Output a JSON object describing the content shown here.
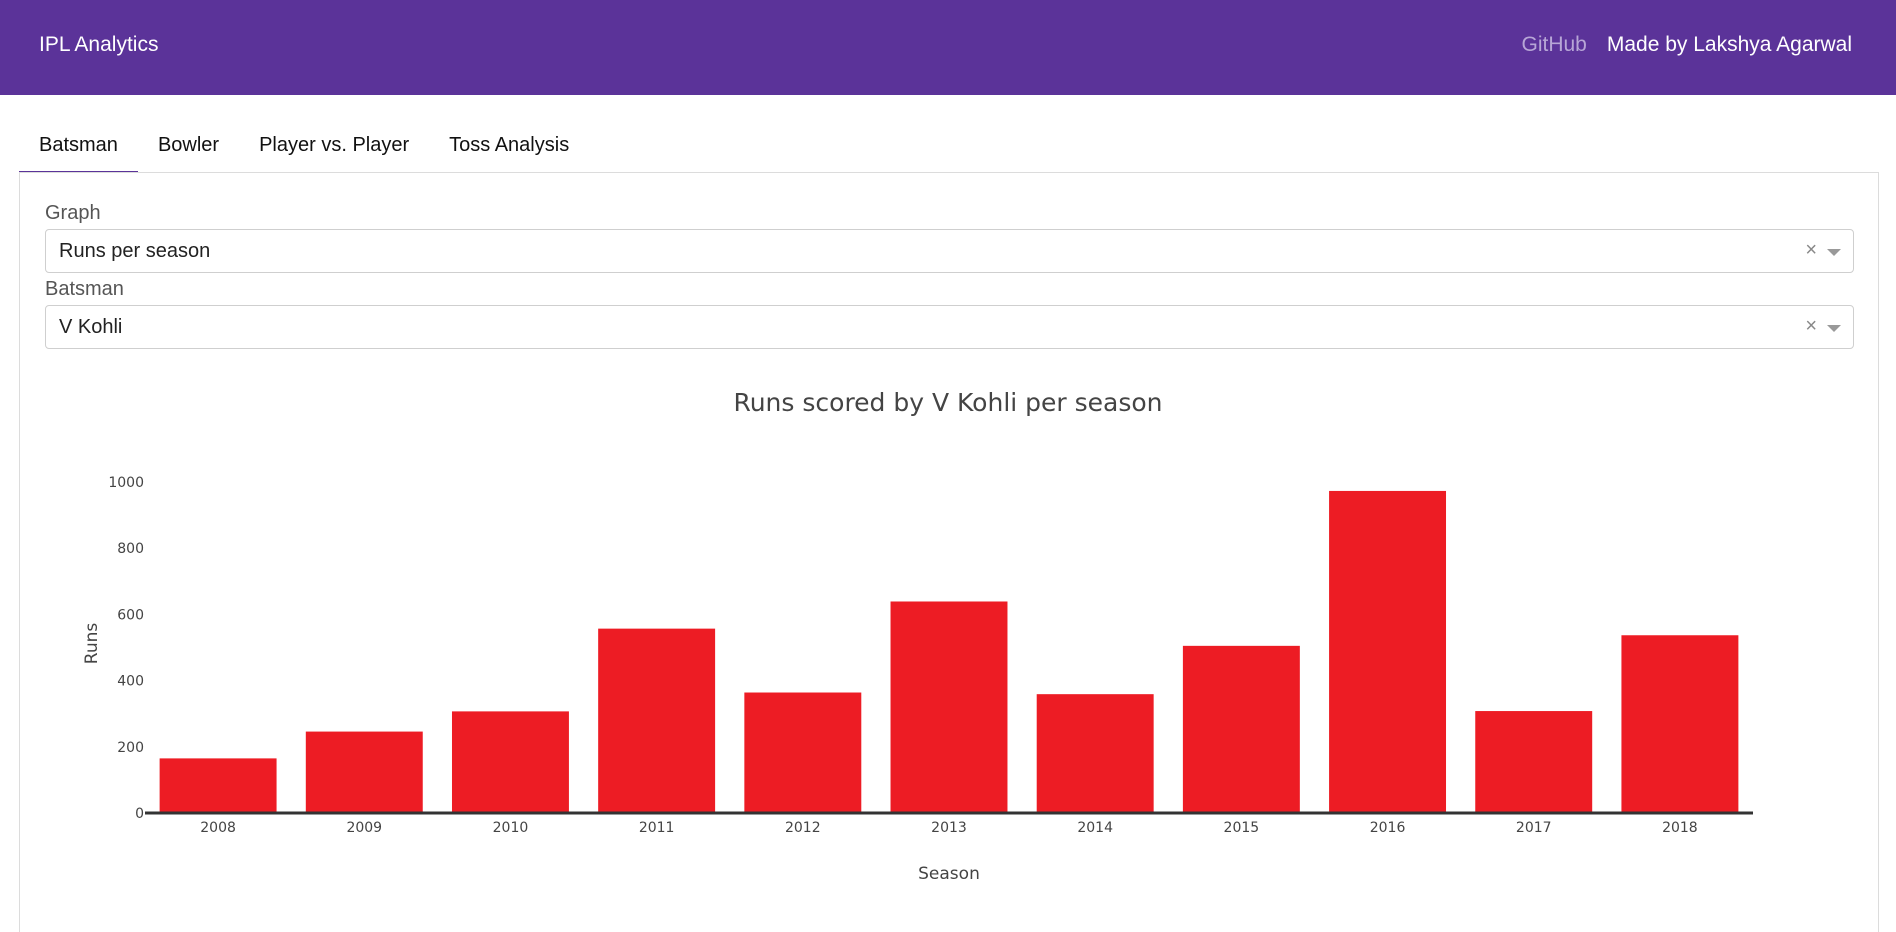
{
  "header": {
    "brand": "IPL Analytics",
    "github_label": "GitHub",
    "author_label": "Made by Lakshya Agarwal",
    "color": "#5b3399"
  },
  "tabs": [
    {
      "label": "Batsman",
      "active": true
    },
    {
      "label": "Bowler",
      "active": false
    },
    {
      "label": "Player vs. Player",
      "active": false
    },
    {
      "label": "Toss Analysis",
      "active": false
    }
  ],
  "form": {
    "graph": {
      "label": "Graph",
      "value": "Runs per season"
    },
    "batsman": {
      "label": "Batsman",
      "value": "V Kohli"
    }
  },
  "chart_data": {
    "type": "bar",
    "title": "Runs scored by V Kohli per season",
    "xlabel": "Season",
    "ylabel": "Runs",
    "categories": [
      "2008",
      "2009",
      "2010",
      "2011",
      "2012",
      "2013",
      "2014",
      "2015",
      "2016",
      "2017",
      "2018"
    ],
    "values": [
      165,
      246,
      307,
      557,
      364,
      639,
      359,
      505,
      973,
      308,
      537
    ],
    "ylim": [
      0,
      1000
    ],
    "yticks": [
      0,
      200,
      400,
      600,
      800,
      1000
    ],
    "bar_color": "#ed1c24",
    "grid": false
  }
}
